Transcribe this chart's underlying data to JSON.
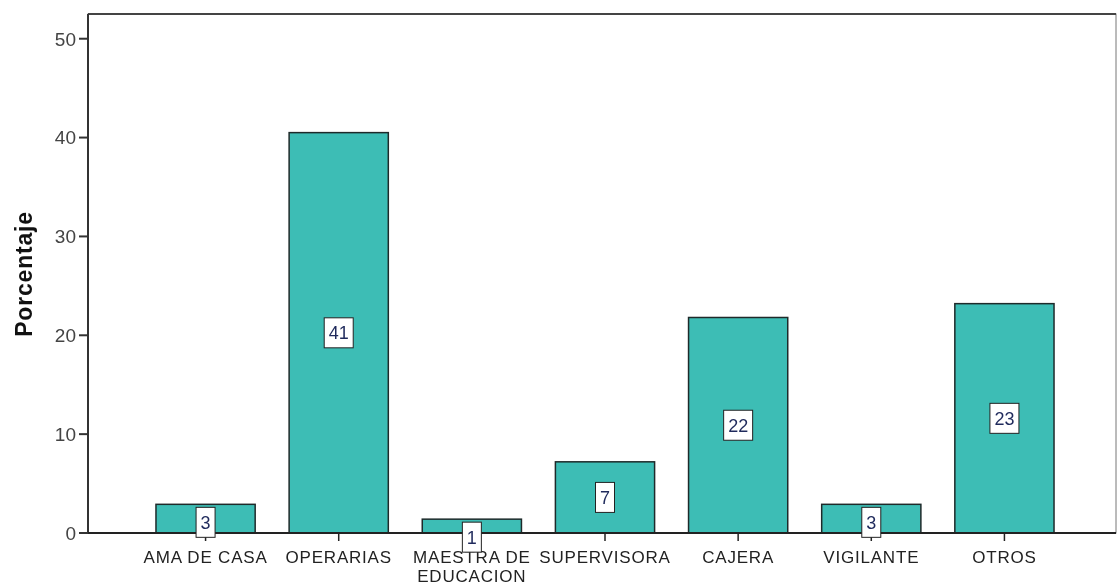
{
  "chart_data": {
    "type": "bar",
    "ylabel": "Porcentaje",
    "categories": [
      "AMA DE CASA",
      "OPERARIAS",
      "MAESTRA DE EDUCACION",
      "SUPERVISORA",
      "CAJERA",
      "VIGILANTE",
      "OTROS"
    ],
    "values": [
      2.9,
      40.5,
      1.4,
      7.2,
      21.8,
      2.9,
      23.2
    ],
    "value_labels": [
      "3",
      "41",
      "1",
      "7",
      "22",
      "3",
      "23"
    ],
    "color": "#3dbdb5",
    "ylim": [
      0,
      52.5
    ],
    "yticks": [
      0,
      10,
      20,
      30,
      40,
      50
    ]
  }
}
